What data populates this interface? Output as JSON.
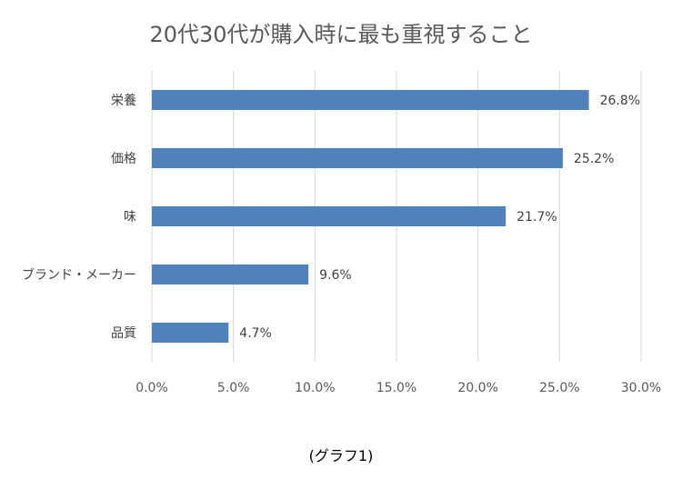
{
  "chart_data": {
    "type": "bar",
    "orientation": "horizontal",
    "title": "20代30代が購入時に最も重視すること",
    "categories": [
      "栄養",
      "価格",
      "味",
      "ブランド・メーカー",
      "品質"
    ],
    "values": [
      26.8,
      25.2,
      21.7,
      9.6,
      4.7
    ],
    "data_labels": [
      "26.8%",
      "25.2%",
      "21.7%",
      "9.6%",
      "4.7%"
    ],
    "x_ticks": [
      "0.0%",
      "5.0%",
      "10.0%",
      "15.0%",
      "20.0%",
      "25.0%",
      "30.0%"
    ],
    "xlim": [
      0,
      30
    ],
    "xlabel": "",
    "ylabel": "",
    "grid": true,
    "legend": "none",
    "bar_color": "#4F81BD",
    "grid_color": "#D9D9D9"
  },
  "caption": "(グラフ1)"
}
